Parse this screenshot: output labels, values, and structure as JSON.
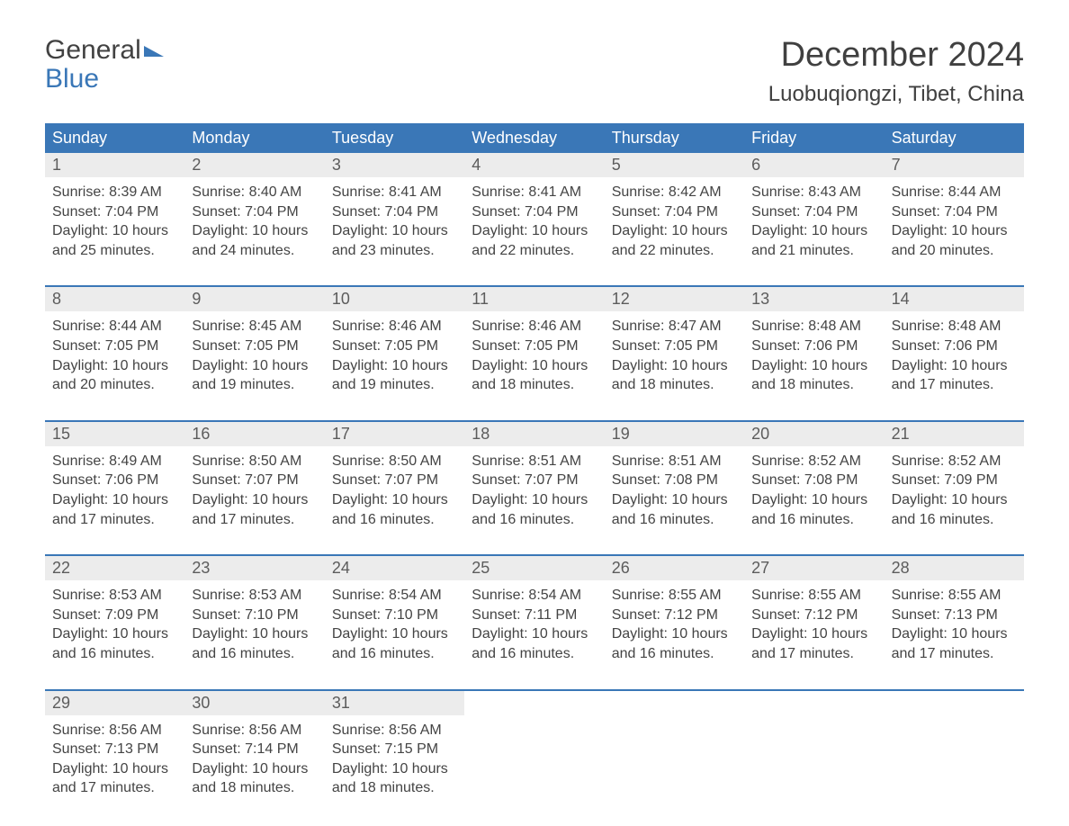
{
  "logo": {
    "line1a": "General",
    "line2": "Blue"
  },
  "header": {
    "month": "December 2024",
    "location": "Luobuqiongzi, Tibet, China"
  },
  "colors": {
    "brand": "#3a77b7",
    "dayNumBg": "#ececec",
    "text": "#444444",
    "bg": "#ffffff"
  },
  "daysOfWeek": [
    "Sunday",
    "Monday",
    "Tuesday",
    "Wednesday",
    "Thursday",
    "Friday",
    "Saturday"
  ],
  "weeks": [
    [
      {
        "n": "1",
        "sr": "8:39 AM",
        "ss": "7:04 PM",
        "dh": "10",
        "dm": "25"
      },
      {
        "n": "2",
        "sr": "8:40 AM",
        "ss": "7:04 PM",
        "dh": "10",
        "dm": "24"
      },
      {
        "n": "3",
        "sr": "8:41 AM",
        "ss": "7:04 PM",
        "dh": "10",
        "dm": "23"
      },
      {
        "n": "4",
        "sr": "8:41 AM",
        "ss": "7:04 PM",
        "dh": "10",
        "dm": "22"
      },
      {
        "n": "5",
        "sr": "8:42 AM",
        "ss": "7:04 PM",
        "dh": "10",
        "dm": "22"
      },
      {
        "n": "6",
        "sr": "8:43 AM",
        "ss": "7:04 PM",
        "dh": "10",
        "dm": "21"
      },
      {
        "n": "7",
        "sr": "8:44 AM",
        "ss": "7:04 PM",
        "dh": "10",
        "dm": "20"
      }
    ],
    [
      {
        "n": "8",
        "sr": "8:44 AM",
        "ss": "7:05 PM",
        "dh": "10",
        "dm": "20"
      },
      {
        "n": "9",
        "sr": "8:45 AM",
        "ss": "7:05 PM",
        "dh": "10",
        "dm": "19"
      },
      {
        "n": "10",
        "sr": "8:46 AM",
        "ss": "7:05 PM",
        "dh": "10",
        "dm": "19"
      },
      {
        "n": "11",
        "sr": "8:46 AM",
        "ss": "7:05 PM",
        "dh": "10",
        "dm": "18"
      },
      {
        "n": "12",
        "sr": "8:47 AM",
        "ss": "7:05 PM",
        "dh": "10",
        "dm": "18"
      },
      {
        "n": "13",
        "sr": "8:48 AM",
        "ss": "7:06 PM",
        "dh": "10",
        "dm": "18"
      },
      {
        "n": "14",
        "sr": "8:48 AM",
        "ss": "7:06 PM",
        "dh": "10",
        "dm": "17"
      }
    ],
    [
      {
        "n": "15",
        "sr": "8:49 AM",
        "ss": "7:06 PM",
        "dh": "10",
        "dm": "17"
      },
      {
        "n": "16",
        "sr": "8:50 AM",
        "ss": "7:07 PM",
        "dh": "10",
        "dm": "17"
      },
      {
        "n": "17",
        "sr": "8:50 AM",
        "ss": "7:07 PM",
        "dh": "10",
        "dm": "16"
      },
      {
        "n": "18",
        "sr": "8:51 AM",
        "ss": "7:07 PM",
        "dh": "10",
        "dm": "16"
      },
      {
        "n": "19",
        "sr": "8:51 AM",
        "ss": "7:08 PM",
        "dh": "10",
        "dm": "16"
      },
      {
        "n": "20",
        "sr": "8:52 AM",
        "ss": "7:08 PM",
        "dh": "10",
        "dm": "16"
      },
      {
        "n": "21",
        "sr": "8:52 AM",
        "ss": "7:09 PM",
        "dh": "10",
        "dm": "16"
      }
    ],
    [
      {
        "n": "22",
        "sr": "8:53 AM",
        "ss": "7:09 PM",
        "dh": "10",
        "dm": "16"
      },
      {
        "n": "23",
        "sr": "8:53 AM",
        "ss": "7:10 PM",
        "dh": "10",
        "dm": "16"
      },
      {
        "n": "24",
        "sr": "8:54 AM",
        "ss": "7:10 PM",
        "dh": "10",
        "dm": "16"
      },
      {
        "n": "25",
        "sr": "8:54 AM",
        "ss": "7:11 PM",
        "dh": "10",
        "dm": "16"
      },
      {
        "n": "26",
        "sr": "8:55 AM",
        "ss": "7:12 PM",
        "dh": "10",
        "dm": "16"
      },
      {
        "n": "27",
        "sr": "8:55 AM",
        "ss": "7:12 PM",
        "dh": "10",
        "dm": "17"
      },
      {
        "n": "28",
        "sr": "8:55 AM",
        "ss": "7:13 PM",
        "dh": "10",
        "dm": "17"
      }
    ],
    [
      {
        "n": "29",
        "sr": "8:56 AM",
        "ss": "7:13 PM",
        "dh": "10",
        "dm": "17"
      },
      {
        "n": "30",
        "sr": "8:56 AM",
        "ss": "7:14 PM",
        "dh": "10",
        "dm": "18"
      },
      {
        "n": "31",
        "sr": "8:56 AM",
        "ss": "7:15 PM",
        "dh": "10",
        "dm": "18"
      },
      null,
      null,
      null,
      null
    ]
  ],
  "labels": {
    "sunrise": "Sunrise: ",
    "sunset": "Sunset: ",
    "daylight1": "Daylight: ",
    "hoursWord": " hours",
    "andWord": "and ",
    "minutesWord": " minutes."
  }
}
